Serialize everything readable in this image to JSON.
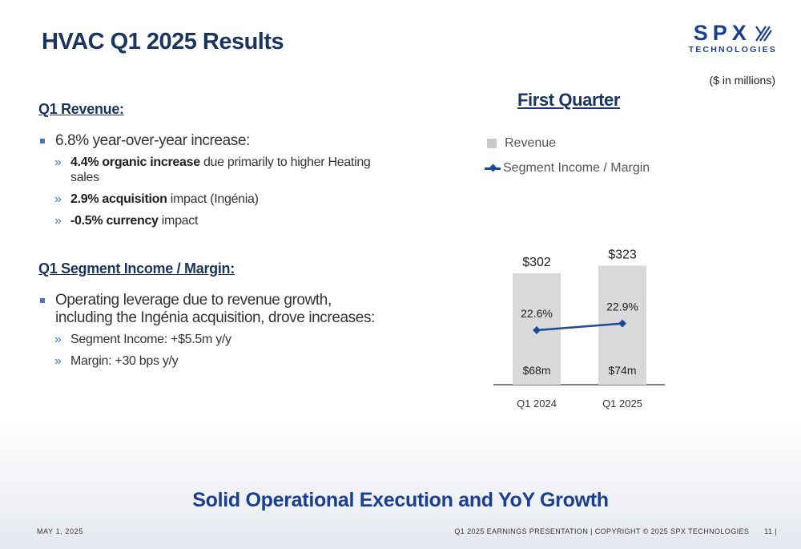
{
  "title": "HVAC Q1 2025 Results",
  "logo": {
    "word": "SPX",
    "sub": "TECHNOLOGIES"
  },
  "units_note": "($ in millions)",
  "revenue": {
    "heading": "Q1 Revenue:",
    "bullet": "6.8% year-over-year increase:",
    "subs": [
      {
        "bold": "4.4% organic increase",
        "rest": " due primarily to higher Heating sales"
      },
      {
        "bold": "2.9% acquisition",
        "rest": " impact (Ingénia)"
      },
      {
        "bold": "-0.5% currency",
        "rest": " impact"
      }
    ]
  },
  "segment": {
    "heading": "Q1 Segment Income / Margin:",
    "bullet": "Operating leverage due to revenue growth, including the Ingénia acquisition, drove increases:",
    "subs": [
      {
        "bold": "",
        "rest": "Segment Income: +$5.5m y/y"
      },
      {
        "bold": "",
        "rest": "Margin: +30 bps y/y"
      }
    ]
  },
  "chart_data": {
    "type": "bar",
    "title": "First Quarter",
    "categories": [
      "Q1 2024",
      "Q1 2025"
    ],
    "legend": [
      "Revenue",
      "Segment Income / Margin"
    ],
    "legend_position": "top-left",
    "series": [
      {
        "name": "Revenue",
        "type": "bar",
        "values": [
          302,
          323
        ],
        "labels": [
          "$302",
          "$323"
        ]
      },
      {
        "name": "Segment Income / Margin",
        "type": "line",
        "values": [
          22.6,
          22.9
        ],
        "labels": [
          "22.6%",
          "22.9%"
        ]
      }
    ],
    "segment_income_labels": [
      "$68m",
      "$74m"
    ],
    "bar_color": "#d9d9d9",
    "line_color": "#1b4a96",
    "grid": false
  },
  "tagline": "Solid Operational Execution and YoY Growth",
  "footer": {
    "date": "MAY 1, 2025",
    "presentation": "Q1 2025 EARNINGS PRESENTATION | COPYRIGHT © 2025 SPX TECHNOLOGIES",
    "page": "11 |"
  }
}
